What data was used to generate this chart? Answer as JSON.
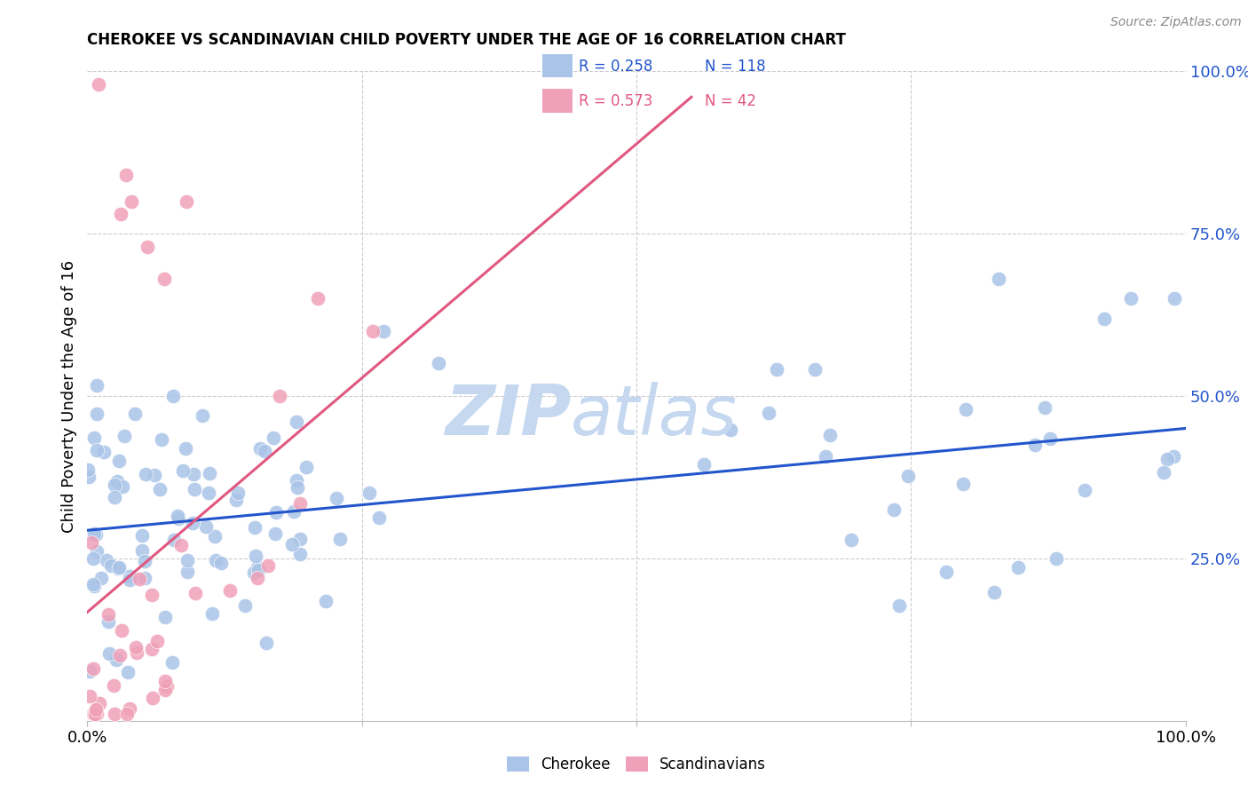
{
  "title": "CHEROKEE VS SCANDINAVIAN CHILD POVERTY UNDER THE AGE OF 16 CORRELATION CHART",
  "source": "Source: ZipAtlas.com",
  "ylabel": "Child Poverty Under the Age of 16",
  "legend_cherokee_label": "Cherokee",
  "legend_scand_label": "Scandinavians",
  "cherokee_R": "0.258",
  "cherokee_N": "118",
  "scand_R": "0.573",
  "scand_N": "42",
  "cherokee_color": "#aac4e8",
  "scand_color": "#f0a0b8",
  "cherokee_line_color": "#2255cc",
  "scand_line_color": "#e05880",
  "background_color": "#ffffff",
  "grid_color": "#cccccc",
  "watermark_zip_color": "#c5d8f0",
  "watermark_atlas_color": "#c5d8f0",
  "title_fontsize": 12,
  "axis_fontsize": 13,
  "source_fontsize": 10,
  "cherokee_seed": 42,
  "scand_seed": 99
}
